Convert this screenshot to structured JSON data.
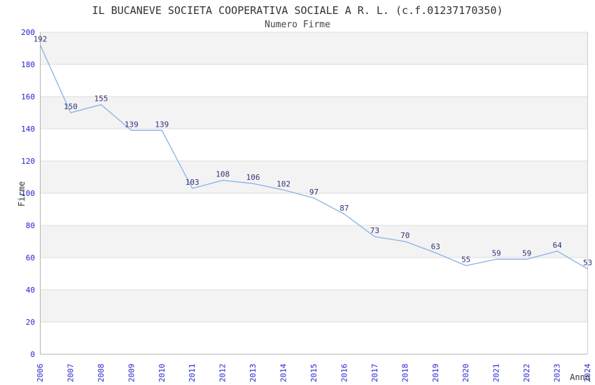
{
  "title": "IL BUCANEVE SOCIETA COOPERATIVA SOCIALE A R. L. (c.f.01237170350)",
  "subtitle": "Numero Firme",
  "chart_data": {
    "type": "line",
    "title": "IL BUCANEVE SOCIETA COOPERATIVA SOCIALE A R. L. (c.f.01237170350)",
    "subtitle": "Numero Firme",
    "xlabel": "Anno",
    "ylabel": "Firme",
    "x": [
      2006,
      2007,
      2008,
      2009,
      2010,
      2011,
      2012,
      2013,
      2014,
      2015,
      2016,
      2017,
      2018,
      2019,
      2020,
      2021,
      2022,
      2023,
      2024
    ],
    "series": [
      {
        "name": "Numero Firme",
        "values": [
          192,
          150,
          155,
          139,
          139,
          103,
          108,
          106,
          102,
          97,
          87,
          73,
          70,
          63,
          55,
          59,
          59,
          64,
          53
        ]
      }
    ],
    "ylim": [
      0,
      200
    ],
    "ytick_step": 20,
    "yticks": [
      0,
      20,
      40,
      60,
      80,
      100,
      120,
      140,
      160,
      180,
      200
    ],
    "grid": "horizontal gridlines with alternating shaded bands",
    "legend_position": "none",
    "data_labels_visible": true,
    "x_tick_rotation_deg": -90,
    "colors": {
      "line": "#85b3e6",
      "tick_label": "#2424cf",
      "data_label": "#333377",
      "band_shaded": "#f3f3f3",
      "band_plain": "#ffffff",
      "gridline": "#dddddd",
      "axis_line": "#b3b3b3",
      "plot_border": "#cccccc",
      "text": "#333333",
      "background": "#ffffff"
    }
  }
}
